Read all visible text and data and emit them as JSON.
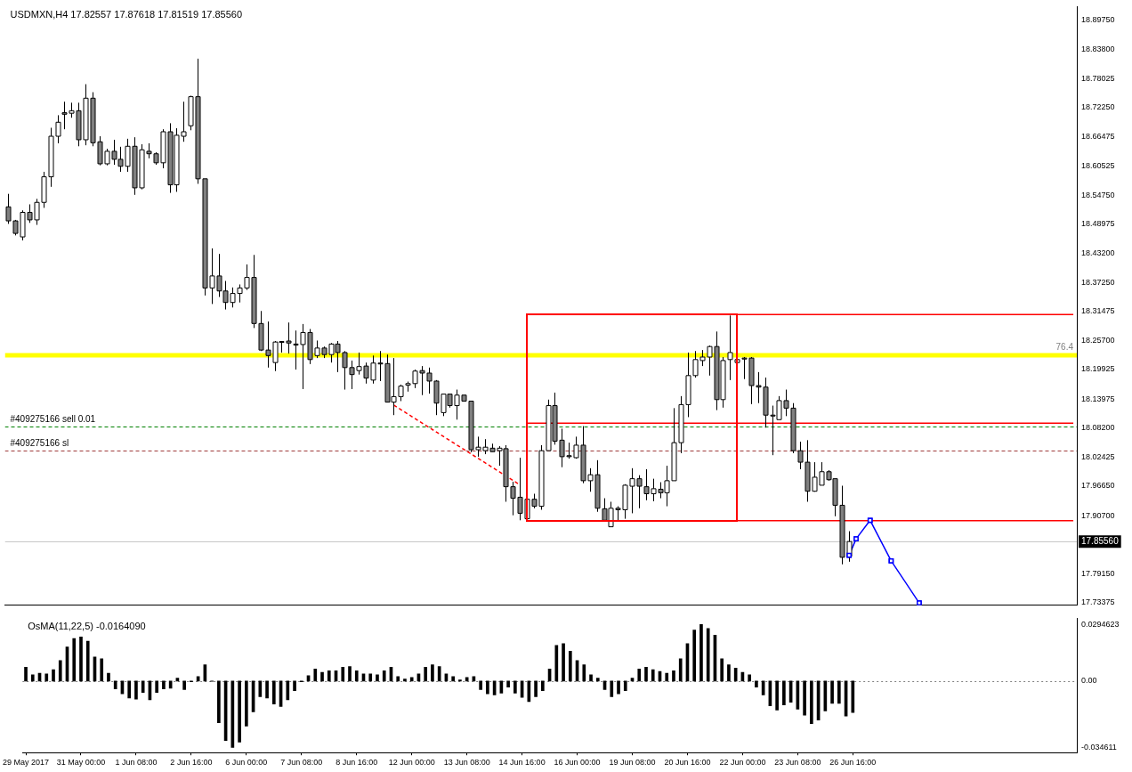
{
  "chart_data": [
    {
      "type": "candlestick",
      "title": "USDMXN,H4 17.82557 17.87618 17.81519 17.85560",
      "categories": [
        null,
        null,
        null,
        null,
        null,
        null,
        null,
        null,
        null,
        null,
        null,
        null,
        null,
        null,
        null,
        null,
        null,
        null,
        null,
        null,
        null,
        null,
        null,
        null,
        null,
        null,
        null,
        null,
        null,
        null,
        null,
        null,
        null,
        null,
        null,
        null,
        null,
        null,
        null,
        null,
        null,
        null,
        null,
        null,
        null,
        null,
        null,
        null,
        null,
        null,
        null,
        null,
        null,
        null,
        null,
        null,
        null,
        null,
        null,
        null,
        null,
        null,
        null,
        null,
        null,
        null,
        null,
        null,
        null,
        null,
        null,
        null,
        null,
        null,
        null,
        null,
        null,
        null,
        null,
        null,
        null,
        null,
        null,
        null,
        null,
        null,
        null,
        null,
        null,
        null,
        null,
        null,
        null,
        null,
        null,
        null,
        null,
        null,
        null,
        null,
        null,
        null,
        null,
        null,
        null,
        null,
        null,
        null,
        null,
        null,
        null,
        null,
        null,
        null,
        null,
        null,
        null,
        null,
        null,
        null,
        null,
        null,
        null,
        null,
        null,
        null,
        null,
        null,
        null,
        null,
        null,
        null,
        null,
        null,
        null,
        null,
        null,
        null,
        null,
        null,
        null,
        null,
        null,
        null,
        null,
        null,
        null,
        null,
        null,
        null,
        null,
        null,
        null
      ],
      "ohlc": [
        [
          18.524,
          18.55,
          18.49,
          18.496
        ],
        [
          18.496,
          18.498,
          18.467,
          18.471
        ],
        [
          18.464,
          18.517,
          18.457,
          18.513
        ],
        [
          18.513,
          18.529,
          18.492,
          18.498
        ],
        [
          18.498,
          18.54,
          18.488,
          18.533
        ],
        [
          18.533,
          18.594,
          18.522,
          18.584
        ],
        [
          18.584,
          18.682,
          18.564,
          18.665
        ],
        [
          18.665,
          18.707,
          18.651,
          18.693
        ],
        [
          18.712,
          18.734,
          18.679,
          18.709
        ],
        [
          18.711,
          18.732,
          18.702,
          18.716
        ],
        [
          18.716,
          18.732,
          18.645,
          18.658
        ],
        [
          18.658,
          18.769,
          18.647,
          18.741
        ],
        [
          18.741,
          18.753,
          18.645,
          18.652
        ],
        [
          18.654,
          18.665,
          18.607,
          18.61
        ],
        [
          18.61,
          18.64,
          18.607,
          18.635
        ],
        [
          18.635,
          18.658,
          18.608,
          18.619
        ],
        [
          18.619,
          18.644,
          18.594,
          18.605
        ],
        [
          18.605,
          18.66,
          18.594,
          18.645
        ],
        [
          18.645,
          18.663,
          18.548,
          18.562
        ],
        [
          18.562,
          18.649,
          18.559,
          18.638
        ],
        [
          18.635,
          18.651,
          18.621,
          18.63
        ],
        [
          18.63,
          18.633,
          18.608,
          18.612
        ],
        [
          18.612,
          18.679,
          18.601,
          18.674
        ],
        [
          18.674,
          18.691,
          18.552,
          18.568
        ],
        [
          18.568,
          18.681,
          18.554,
          18.667
        ],
        [
          18.665,
          18.734,
          18.654,
          18.674
        ],
        [
          18.686,
          18.746,
          18.677,
          18.744
        ],
        [
          18.744,
          18.82,
          18.57,
          18.58
        ],
        [
          18.58,
          18.58,
          18.347,
          18.362
        ],
        [
          18.362,
          18.441,
          18.33,
          18.386
        ],
        [
          18.386,
          18.43,
          18.344,
          18.356
        ],
        [
          18.356,
          18.376,
          18.319,
          18.333
        ],
        [
          18.333,
          18.363,
          18.323,
          18.351
        ],
        [
          18.351,
          18.369,
          18.333,
          18.362
        ],
        [
          18.362,
          18.409,
          18.358,
          18.383
        ],
        [
          18.383,
          18.428,
          18.282,
          18.291
        ],
        [
          18.291,
          18.316,
          18.236,
          18.238
        ],
        [
          18.238,
          18.295,
          18.203,
          18.227
        ],
        [
          18.213,
          18.256,
          18.196,
          18.254
        ],
        [
          18.254,
          18.256,
          18.233,
          18.255
        ],
        [
          18.256,
          18.293,
          18.231,
          18.252
        ],
        [
          18.25,
          18.277,
          18.199,
          18.248
        ],
        [
          18.249,
          18.29,
          18.16,
          18.273
        ],
        [
          18.273,
          18.28,
          18.21,
          18.219
        ],
        [
          18.227,
          18.257,
          18.222,
          18.242
        ],
        [
          18.242,
          18.245,
          18.222,
          18.229
        ],
        [
          18.229,
          18.252,
          18.213,
          18.25
        ],
        [
          18.25,
          18.256,
          18.194,
          18.233
        ],
        [
          18.233,
          18.236,
          18.159,
          18.203
        ],
        [
          18.203,
          18.217,
          18.16,
          18.189
        ],
        [
          18.197,
          18.233,
          18.189,
          18.205
        ],
        [
          18.206,
          18.213,
          18.171,
          18.182
        ],
        [
          18.178,
          18.227,
          18.171,
          18.212
        ],
        [
          18.212,
          18.236,
          18.176,
          18.211
        ],
        [
          18.211,
          18.229,
          18.134,
          18.134
        ],
        [
          18.134,
          18.222,
          18.108,
          18.145
        ],
        [
          18.145,
          18.169,
          18.136,
          18.166
        ],
        [
          18.168,
          18.175,
          18.155,
          18.171
        ],
        [
          18.171,
          18.199,
          18.162,
          18.196
        ],
        [
          18.197,
          18.206,
          18.148,
          18.192
        ],
        [
          18.192,
          18.203,
          18.151,
          18.176
        ],
        [
          18.176,
          18.178,
          18.108,
          18.132
        ],
        [
          18.113,
          18.15,
          18.106,
          18.15
        ],
        [
          18.15,
          18.15,
          18.123,
          18.127
        ],
        [
          18.127,
          18.159,
          18.099,
          18.148
        ],
        [
          18.148,
          18.148,
          18.136,
          18.136
        ],
        [
          18.136,
          18.136,
          18.034,
          18.039
        ],
        [
          18.039,
          18.065,
          18.025,
          18.044
        ],
        [
          18.037,
          18.06,
          18.03,
          18.044
        ],
        [
          18.042,
          18.051,
          18.035,
          18.035
        ],
        [
          18.037,
          18.046,
          18.007,
          18.042
        ],
        [
          18.041,
          18.048,
          17.935,
          17.965
        ],
        [
          17.965,
          17.975,
          17.908,
          17.942
        ],
        [
          17.944,
          18.023,
          17.898,
          17.912
        ],
        [
          17.901,
          17.94,
          17.898,
          17.94
        ],
        [
          17.94,
          17.951,
          17.922,
          17.926
        ],
        [
          17.926,
          18.048,
          17.919,
          18.037
        ],
        [
          18.037,
          18.139,
          18.037,
          18.127
        ],
        [
          18.127,
          18.153,
          18.049,
          18.056
        ],
        [
          18.058,
          18.081,
          18.004,
          18.025
        ],
        [
          18.027,
          18.053,
          18.021,
          18.025
        ],
        [
          18.023,
          18.065,
          18.021,
          18.048
        ],
        [
          18.048,
          18.086,
          17.972,
          17.977
        ],
        [
          17.977,
          18.002,
          17.955,
          17.989
        ],
        [
          17.989,
          18.018,
          17.915,
          17.922
        ],
        [
          17.921,
          17.942,
          17.898,
          17.898
        ],
        [
          17.885,
          17.935,
          17.885,
          17.922
        ],
        [
          17.922,
          17.926,
          17.898,
          17.919
        ],
        [
          17.919,
          17.97,
          17.901,
          17.968
        ],
        [
          17.966,
          18.002,
          17.912,
          17.981
        ],
        [
          17.981,
          17.988,
          17.922,
          17.966
        ],
        [
          17.965,
          18.0,
          17.938,
          17.951
        ],
        [
          17.951,
          17.981,
          17.936,
          17.961
        ],
        [
          17.96,
          17.974,
          17.942,
          17.953
        ],
        [
          17.953,
          18.007,
          17.926,
          17.977
        ],
        [
          17.977,
          18.122,
          17.977,
          18.053
        ],
        [
          18.053,
          18.146,
          18.032,
          18.129
        ],
        [
          18.129,
          18.233,
          18.104,
          18.187
        ],
        [
          18.187,
          18.236,
          18.183,
          18.219
        ],
        [
          18.217,
          18.238,
          18.206,
          18.224
        ],
        [
          18.224,
          18.247,
          18.187,
          18.245
        ],
        [
          18.245,
          18.275,
          18.118,
          18.139
        ],
        [
          18.139,
          18.224,
          18.123,
          18.217
        ],
        [
          18.219,
          18.307,
          18.178,
          18.233
        ],
        [
          18.213,
          18.219,
          18.213,
          18.219
        ],
        [
          18.222,
          18.224,
          18.18,
          18.22
        ],
        [
          18.222,
          18.224,
          18.13,
          18.167
        ],
        [
          18.167,
          18.194,
          18.132,
          18.164
        ],
        [
          18.164,
          18.183,
          18.083,
          18.108
        ],
        [
          18.108,
          18.127,
          18.028,
          18.107
        ],
        [
          18.099,
          18.146,
          18.099,
          18.137
        ],
        [
          18.137,
          18.159,
          18.106,
          18.122
        ],
        [
          18.122,
          18.132,
          18.032,
          18.037
        ],
        [
          18.037,
          18.055,
          18.0,
          18.014
        ],
        [
          18.014,
          18.058,
          17.935,
          17.956
        ],
        [
          17.956,
          18.014,
          17.955,
          17.984
        ],
        [
          17.968,
          18.014,
          17.968,
          17.995
        ],
        [
          17.995,
          17.998,
          17.977,
          17.979
        ],
        [
          17.981,
          17.981,
          17.906,
          17.928
        ],
        [
          17.928,
          17.967,
          17.81,
          17.824
        ],
        [
          17.82557,
          17.87618,
          17.81519,
          17.8556
        ],
        null,
        null,
        null,
        null,
        null,
        null,
        null,
        null,
        null,
        null,
        null,
        null,
        null,
        null,
        null,
        null,
        null,
        null,
        null,
        null,
        null,
        null,
        null,
        null,
        null,
        null,
        null,
        null,
        null,
        null,
        null,
        null
      ],
      "series": [
        {
          "type": "line",
          "color": "#ff0000",
          "values": [
            null,
            null,
            null,
            null,
            null,
            null,
            null,
            null,
            null,
            null,
            null,
            null,
            null,
            null,
            null,
            null,
            null,
            null,
            null,
            null,
            null,
            null,
            null,
            null,
            null,
            null,
            null,
            null,
            null,
            null,
            null,
            null,
            null,
            null,
            null,
            null,
            null,
            null,
            null,
            null,
            null,
            null,
            null,
            null,
            null,
            null,
            null,
            null,
            null,
            null,
            null,
            null,
            null,
            null,
            null,
            null,
            null,
            null,
            null,
            null,
            null,
            null,
            null,
            null,
            null,
            null,
            null,
            null,
            null,
            null,
            null,
            null,
            null,
            null,
            18.309,
            null,
            null,
            null,
            null,
            null,
            null,
            null,
            null,
            null,
            null,
            null,
            null,
            null,
            null,
            null,
            null,
            null,
            null,
            null,
            null,
            null,
            null,
            null,
            null,
            null,
            null,
            null,
            null,
            null,
            null,
            null,
            null,
            null,
            null,
            null,
            null,
            null,
            null,
            null,
            null,
            null,
            null,
            null,
            null,
            null,
            null,
            null,
            null,
            null,
            null,
            null,
            null,
            null,
            null,
            null,
            null,
            null,
            null,
            null,
            null,
            null,
            null,
            null,
            null,
            null,
            null,
            null,
            null,
            null,
            null,
            null,
            null,
            null,
            null,
            null,
            null,
            null,
            18.309
          ]
        },
        {
          "type": "line",
          "color": "#ff0000",
          "values": [
            null,
            null,
            null,
            null,
            null,
            null,
            null,
            null,
            null,
            null,
            null,
            null,
            null,
            null,
            null,
            null,
            null,
            null,
            null,
            null,
            null,
            null,
            null,
            null,
            null,
            null,
            null,
            null,
            null,
            null,
            null,
            null,
            null,
            null,
            null,
            null,
            null,
            null,
            null,
            null,
            null,
            null,
            null,
            null,
            null,
            null,
            null,
            null,
            null,
            null,
            null,
            null,
            null,
            null,
            null,
            null,
            null,
            null,
            null,
            null,
            null,
            null,
            null,
            null,
            null,
            null,
            null,
            null,
            null,
            null,
            null,
            null,
            null,
            null,
            17.897,
            null,
            null,
            null,
            null,
            null,
            null,
            null,
            null,
            null,
            null,
            null,
            null,
            null,
            null,
            null,
            null,
            null,
            null,
            null,
            null,
            null,
            null,
            null,
            null,
            null,
            null,
            null,
            null,
            null,
            null,
            null,
            null,
            null,
            null,
            null,
            null,
            null,
            null,
            null,
            null,
            null,
            null,
            null,
            null,
            null,
            null,
            null,
            null,
            null,
            null,
            null,
            null,
            null,
            null,
            null,
            null,
            null,
            null,
            null,
            null,
            null,
            null,
            null,
            null,
            null,
            null,
            null,
            null,
            null,
            null,
            null,
            null,
            null,
            null,
            null,
            null,
            null,
            17.897
          ]
        },
        {
          "type": "line",
          "color": "#ff0000",
          "values": [
            null,
            null,
            null,
            null,
            null,
            null,
            null,
            null,
            null,
            null,
            null,
            null,
            null,
            null,
            null,
            null,
            null,
            null,
            null,
            null,
            null,
            null,
            null,
            null,
            null,
            null,
            null,
            null,
            null,
            null,
            null,
            null,
            null,
            null,
            null,
            null,
            null,
            null,
            null,
            null,
            null,
            null,
            null,
            null,
            null,
            null,
            null,
            null,
            null,
            null,
            null,
            null,
            null,
            null,
            null,
            null,
            null,
            null,
            null,
            null,
            null,
            null,
            null,
            null,
            null,
            null,
            null,
            null,
            null,
            null,
            null,
            null,
            null,
            null,
            18.092,
            null,
            null,
            null,
            null,
            null,
            null,
            null,
            null,
            null,
            null,
            null,
            null,
            null,
            null,
            null,
            null,
            null,
            null,
            null,
            null,
            null,
            null,
            null,
            null,
            null,
            null,
            null,
            null,
            null,
            null,
            null,
            null,
            null,
            null,
            null,
            null,
            null,
            null,
            null,
            null,
            null,
            null,
            null,
            null,
            null,
            null,
            null,
            null,
            null,
            null,
            null,
            null,
            null,
            null,
            null,
            null,
            null,
            null,
            null,
            null,
            null,
            null,
            null,
            null,
            null,
            null,
            null,
            null,
            null,
            null,
            null,
            null,
            null,
            null,
            null,
            null,
            null,
            18.092
          ]
        },
        {
          "type": "line",
          "color": "#ff0000",
          "line_style": "dashed",
          "values": [
            null,
            null,
            null,
            null,
            null,
            null,
            null,
            null,
            null,
            null,
            null,
            null,
            null,
            null,
            null,
            null,
            null,
            null,
            null,
            null,
            null,
            null,
            null,
            null,
            null,
            null,
            null,
            null,
            null,
            null,
            null,
            null,
            null,
            null,
            null,
            null,
            null,
            null,
            null,
            null,
            null,
            null,
            null,
            null,
            null,
            null,
            null,
            null,
            null,
            null,
            null,
            null,
            null,
            null,
            null,
            18.128,
            null,
            null,
            null,
            null,
            null,
            null,
            null,
            null,
            null,
            null,
            null,
            null,
            null,
            null,
            null,
            null,
            null,
            17.969,
            null,
            null,
            null,
            null,
            null,
            null,
            null,
            null,
            null,
            null,
            null,
            null,
            null,
            null,
            null,
            null,
            null,
            null,
            null,
            null,
            null,
            null,
            null,
            null,
            null,
            null,
            null,
            null,
            null,
            null,
            null,
            null,
            null,
            null,
            null,
            null,
            null,
            null,
            null,
            null,
            null,
            null,
            null,
            null,
            null,
            null,
            null,
            null,
            null,
            null,
            null,
            null,
            null,
            null,
            null,
            null,
            null,
            null,
            null,
            null,
            null,
            null,
            null,
            null,
            null,
            null,
            null,
            null,
            null,
            null,
            null,
            null,
            null,
            null,
            null,
            null,
            null,
            null,
            null
          ]
        },
        {
          "type": "line",
          "color": "#0000ff",
          "marker": "square",
          "values": [
            null,
            null,
            null,
            null,
            null,
            null,
            null,
            null,
            null,
            null,
            null,
            null,
            null,
            null,
            null,
            null,
            null,
            null,
            null,
            null,
            null,
            null,
            null,
            null,
            null,
            null,
            null,
            null,
            null,
            null,
            null,
            null,
            null,
            null,
            null,
            null,
            null,
            null,
            null,
            null,
            null,
            null,
            null,
            null,
            null,
            null,
            null,
            null,
            null,
            null,
            null,
            null,
            null,
            null,
            null,
            null,
            null,
            null,
            null,
            null,
            null,
            null,
            null,
            null,
            null,
            null,
            null,
            null,
            null,
            null,
            null,
            null,
            null,
            null,
            null,
            null,
            null,
            null,
            null,
            null,
            null,
            null,
            null,
            null,
            null,
            null,
            null,
            null,
            null,
            null,
            null,
            null,
            null,
            null,
            null,
            null,
            null,
            null,
            null,
            null,
            null,
            null,
            null,
            null,
            null,
            null,
            null,
            null,
            null,
            null,
            null,
            null,
            null,
            null,
            null,
            null,
            null,
            null,
            null,
            null,
            17.828,
            17.861,
            null,
            17.898,
            null,
            null,
            17.817,
            null,
            null,
            null,
            17.733,
            null,
            null,
            null,
            null,
            null,
            null,
            null,
            null,
            null,
            null,
            null,
            null,
            null,
            null,
            null,
            null,
            null,
            null,
            null,
            null,
            null,
            null
          ]
        }
      ],
      "bands": [
        {
          "axis": "y",
          "from": 18.223,
          "to": 18.232,
          "label": "76.4",
          "color": "#ffff00"
        }
      ],
      "ref_lines": [
        {
          "axis": "y",
          "value": 18.086,
          "label": "#409275166 sell 0.01",
          "color": "#008000",
          "line_style": "dashed"
        },
        {
          "axis": "y",
          "value": 18.038,
          "label": "#409275166 sl",
          "color": "#a03c3c",
          "line_style": "dashed"
        },
        {
          "axis": "y",
          "value": 17.8556,
          "label": "17.85560",
          "color": "#c8c8c8"
        }
      ],
      "ylim": [
        17.7285,
        18.924
      ],
      "yticks": [
        {
          "value": 18.8975,
          "label": "18.89750"
        },
        {
          "value": 18.838,
          "label": "18.83800"
        },
        {
          "value": 18.78025,
          "label": "18.78025"
        },
        {
          "value": 18.7225,
          "label": "18.72250"
        },
        {
          "value": 18.66475,
          "label": "18.66475"
        },
        {
          "value": 18.60525,
          "label": "18.60525"
        },
        {
          "value": 18.5475,
          "label": "18.54750"
        },
        {
          "value": 18.48975,
          "label": "18.48975"
        },
        {
          "value": 18.432,
          "label": "18.43200"
        },
        {
          "value": 18.3725,
          "label": "18.37250"
        },
        {
          "value": 18.31475,
          "label": "18.31475"
        },
        {
          "value": 18.257,
          "label": "18.25700"
        },
        {
          "value": 18.19925,
          "label": "18.19925"
        },
        {
          "value": 18.13975,
          "label": "18.13975"
        },
        {
          "value": 18.082,
          "label": "18.08200"
        },
        {
          "value": 18.02425,
          "label": "18.02425"
        },
        {
          "value": 17.9665,
          "label": "17.96650"
        },
        {
          "value": 17.907,
          "label": "17.90700"
        },
        {
          "value": 17.7915,
          "label": "17.79150"
        },
        {
          "value": 17.73375,
          "label": "17.73375"
        }
      ],
      "tick_labels": "y"
    },
    {
      "type": "bar",
      "title": "OsMA(11,22,5) -0.0164090",
      "color": "#000000",
      "categories": [
        "29 May 2017",
        null,
        null,
        null,
        null,
        null,
        null,
        null,
        "31 May 00:00",
        null,
        null,
        null,
        null,
        null,
        null,
        null,
        "1 Jun 08:00",
        null,
        null,
        null,
        null,
        null,
        null,
        null,
        "2 Jun 16:00",
        null,
        null,
        null,
        null,
        null,
        null,
        null,
        "6 Jun 00:00",
        null,
        null,
        null,
        null,
        null,
        null,
        null,
        "7 Jun 08:00",
        null,
        null,
        null,
        null,
        null,
        null,
        null,
        "8 Jun 16:00",
        null,
        null,
        null,
        null,
        null,
        null,
        null,
        "12 Jun 00:00",
        null,
        null,
        null,
        null,
        null,
        null,
        null,
        "13 Jun 08:00",
        null,
        null,
        null,
        null,
        null,
        null,
        null,
        "14 Jun 16:00",
        null,
        null,
        null,
        null,
        null,
        null,
        null,
        "16 Jun 00:00",
        null,
        null,
        null,
        null,
        null,
        null,
        null,
        "19 Jun 08:00",
        null,
        null,
        null,
        null,
        null,
        null,
        null,
        "20 Jun 16:00",
        null,
        null,
        null,
        null,
        null,
        null,
        null,
        "22 Jun 00:00",
        null,
        null,
        null,
        null,
        null,
        null,
        null,
        "23 Jun 08:00",
        null,
        null,
        null,
        null,
        null,
        null,
        null,
        "26 Jun 16:00",
        null,
        null,
        null,
        null,
        null,
        null,
        null,
        null,
        null,
        null,
        null,
        null,
        null,
        null,
        null,
        null,
        null,
        null,
        null,
        null,
        null,
        null,
        null,
        null,
        null,
        null,
        null,
        null,
        null,
        null,
        null,
        null
      ],
      "values": [
        0.0072,
        0.0032,
        0.0041,
        0.0037,
        0.0059,
        0.0107,
        0.0178,
        0.0222,
        0.023,
        0.0208,
        0.0125,
        0.0116,
        0.0041,
        -0.0041,
        -0.0067,
        -0.0089,
        -0.0094,
        -0.0059,
        -0.0098,
        -0.0059,
        -0.0041,
        -0.0037,
        0.0015,
        -0.0045,
        -0.0004,
        0.0023,
        0.0085,
        -0.0002,
        -0.0217,
        -0.031,
        -0.0346,
        -0.0318,
        -0.0235,
        -0.016,
        -0.0081,
        -0.0089,
        -0.012,
        -0.0133,
        -0.0098,
        -0.005,
        -0.0004,
        0.0028,
        0.0063,
        0.0045,
        0.0054,
        0.0054,
        0.0072,
        0.0076,
        0.0054,
        0.0037,
        0.0037,
        0.0032,
        0.0054,
        0.0072,
        0.0023,
        0.001,
        0.0019,
        0.0037,
        0.0072,
        0.0085,
        0.0076,
        0.0037,
        0.0023,
        0.0006,
        0.0019,
        0.0023,
        -0.0045,
        -0.0067,
        -0.0072,
        -0.0063,
        -0.0032,
        -0.0063,
        -0.0085,
        -0.0107,
        -0.0081,
        -0.005,
        0.0063,
        0.0186,
        0.0195,
        0.0155,
        0.0107,
        0.0085,
        0.0032,
        0.0015,
        -0.0045,
        -0.0081,
        -0.0067,
        -0.005,
        0.0015,
        0.0063,
        0.0072,
        0.0059,
        0.005,
        0.0041,
        0.0054,
        0.0116,
        0.0195,
        0.0266,
        0.0295,
        0.0274,
        0.0239,
        0.0116,
        0.0085,
        0.0067,
        0.0045,
        0.0032,
        -0.0032,
        -0.0072,
        -0.0129,
        -0.0151,
        -0.0125,
        -0.0111,
        -0.0147,
        -0.0178,
        -0.0222,
        -0.0204,
        -0.0156,
        -0.0116,
        -0.0116,
        -0.0182,
        -0.0164,
        null,
        null,
        null,
        null,
        null,
        null,
        null,
        null,
        null,
        null,
        null,
        null,
        null,
        null,
        null,
        null,
        null,
        null,
        null,
        null,
        null,
        null,
        null,
        null,
        null,
        null,
        null,
        null,
        null,
        null,
        null,
        null
      ],
      "ref_lines": [
        {
          "axis": "y",
          "value": 0,
          "color": "#808080",
          "line_style": "dotted"
        }
      ],
      "ylim": [
        -0.0373,
        0.0327
      ],
      "yticks": [
        0.0294623,
        {
          "value": 0,
          "label": "0.00"
        },
        -0.034611
      ]
    }
  ]
}
